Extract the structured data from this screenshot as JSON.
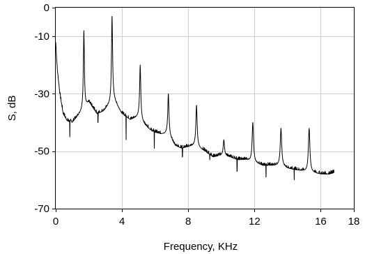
{
  "chart_data": {
    "type": "line",
    "title": "",
    "xlabel": "Frequency, KHz",
    "ylabel": "S, dB",
    "xlim": [
      0,
      18
    ],
    "ylim": [
      -70,
      0
    ],
    "xticks": [
      0,
      4,
      8,
      12,
      16,
      18
    ],
    "yticks": [
      0,
      -10,
      -30,
      -50,
      -70
    ],
    "grid": true,
    "line_color": "#000000",
    "grid_color": "#d0d0d0",
    "series": [
      {
        "baseline": [
          [
            0.0,
            -14
          ],
          [
            0.1,
            -22
          ],
          [
            0.25,
            -30
          ],
          [
            0.45,
            -37
          ],
          [
            0.7,
            -39.5
          ],
          [
            1.0,
            -40
          ],
          [
            1.3,
            -38
          ],
          [
            2.0,
            -33
          ],
          [
            2.5,
            -37
          ],
          [
            2.9,
            -36
          ],
          [
            3.5,
            -32
          ],
          [
            4.0,
            -37
          ],
          [
            4.5,
            -39
          ],
          [
            5.0,
            -38
          ],
          [
            5.4,
            -41
          ],
          [
            5.8,
            -43
          ],
          [
            6.3,
            -44
          ],
          [
            6.8,
            -44
          ],
          [
            7.2,
            -48
          ],
          [
            7.6,
            -49
          ],
          [
            8.0,
            -48.5
          ],
          [
            8.4,
            -48
          ],
          [
            9.0,
            -50
          ],
          [
            9.5,
            -52
          ],
          [
            10.0,
            -51.5
          ],
          [
            10.5,
            -52
          ],
          [
            11.0,
            -53
          ],
          [
            11.5,
            -53
          ],
          [
            12.0,
            -54
          ],
          [
            12.5,
            -55
          ],
          [
            13.0,
            -55
          ],
          [
            13.6,
            -55
          ],
          [
            14.0,
            -56
          ],
          [
            14.5,
            -56.5
          ],
          [
            15.0,
            -57
          ],
          [
            15.5,
            -57.5
          ],
          [
            16.0,
            -58
          ],
          [
            16.5,
            -58
          ],
          [
            16.8,
            -57.5
          ]
        ],
        "peaks": [
          {
            "x": 0.0,
            "y": -12
          },
          {
            "x": 1.7,
            "y": -8
          },
          {
            "x": 3.4,
            "y": -3
          },
          {
            "x": 5.1,
            "y": -20
          },
          {
            "x": 6.8,
            "y": -30
          },
          {
            "x": 8.5,
            "y": -34
          },
          {
            "x": 10.15,
            "y": -46
          },
          {
            "x": 11.9,
            "y": -40
          },
          {
            "x": 13.6,
            "y": -42
          },
          {
            "x": 15.3,
            "y": -42
          }
        ],
        "dips": [
          {
            "x": 0.85,
            "y": -45
          },
          {
            "x": 2.55,
            "y": -40
          },
          {
            "x": 4.25,
            "y": -46
          },
          {
            "x": 5.95,
            "y": -49
          },
          {
            "x": 7.65,
            "y": -52
          },
          {
            "x": 9.3,
            "y": -53
          },
          {
            "x": 10.95,
            "y": -57
          },
          {
            "x": 12.7,
            "y": -59
          },
          {
            "x": 14.4,
            "y": -60
          }
        ]
      }
    ]
  }
}
